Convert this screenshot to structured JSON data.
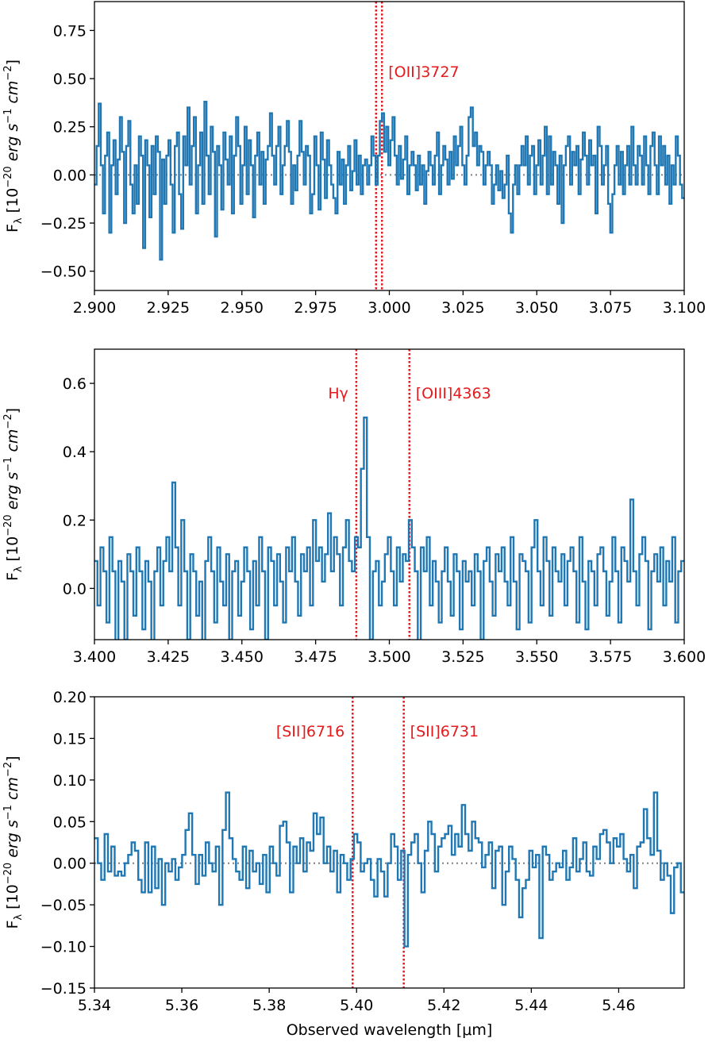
{
  "chart_data": [
    {
      "type": "line",
      "drawstyle": "steps",
      "xlim": [
        2.9,
        3.1
      ],
      "ylim": [
        -0.6,
        0.9
      ],
      "xticks": [
        "2.900",
        "2.925",
        "2.950",
        "2.975",
        "3.000",
        "3.025",
        "3.050",
        "3.075",
        "3.100"
      ],
      "yticks": [
        "−0.50",
        "−0.25",
        "0.00",
        "0.25",
        "0.50",
        "0.75"
      ],
      "ylabel_parts": [
        "F",
        "λ",
        " [10",
        "−20",
        " erg s",
        "−1",
        " cm",
        "−2",
        "]"
      ],
      "xlabel": "",
      "zero_line": true,
      "lines": [
        {
          "x": 2.9955,
          "label": ""
        },
        {
          "x": 2.9975,
          "label": "[OII]3727"
        }
      ],
      "x_start": 2.9,
      "x_end": 3.1,
      "values": [
        -0.05,
        0.15,
        0.37,
        0.05,
        -0.2,
        0.1,
        0.22,
        -0.3,
        0.05,
        0.18,
        -0.1,
        0.08,
        0.3,
        0.12,
        -0.25,
        0.15,
        0.28,
        -0.05,
        -0.2,
        0.05,
        -0.15,
        0.2,
        0.1,
        -0.38,
        0.18,
        0.05,
        -0.22,
        0.15,
        -0.1,
        0.2,
        0.12,
        -0.44,
        0.08,
        -0.15,
        0.1,
        0.18,
        -0.05,
        -0.3,
        0.15,
        0.22,
        -0.1,
        -0.28,
        0.2,
        0.05,
        0.35,
        -0.05,
        0.15,
        0.3,
        -0.2,
        0.05,
        0.22,
        -0.15,
        0.38,
        0.1,
        -0.1,
        0.25,
        0.12,
        -0.32,
        0.15,
        0.05,
        -0.18,
        0.22,
        0.08,
        -0.05,
        0.2,
        -0.2,
        0.1,
        0.3,
        0.15,
        -0.15,
        0.05,
        0.25,
        -0.1,
        0.18,
        0.05,
        -0.22,
        0.1,
        0.22,
        -0.05,
        0.12,
        -0.15,
        0.08,
        0.15,
        0.32,
        0.1,
        -0.05,
        0.15,
        0.25,
        -0.1,
        0.05,
        0.15,
        0.28,
        0.12,
        -0.15,
        0.05,
        -0.08,
        0.1,
        0.28,
        0.12,
        -0.05,
        0.15,
        0.1,
        -0.2,
        -0.1,
        0.2,
        0.05,
        -0.18,
        0.22,
        0.08,
        -0.12,
        0.18,
        0.05,
        -0.05,
        -0.12,
        -0.2,
        0.12,
        -0.05,
        0.08,
        -0.15,
        0.05,
        0.15,
        -0.08,
        0.02,
        0.18,
        -0.05,
        0.1,
        -0.1,
        0.05,
        0.08,
        -0.05,
        0.05,
        0.2,
        0.1,
        -0.05,
        0.1,
        0.28,
        0.32,
        0.12,
        0.25,
        0.05,
        0.18,
        0.3,
        0.1,
        -0.05,
        0.15,
        -0.02,
        0.08,
        0.2,
        -0.1,
        0.05,
        0.12,
        0.05,
        -0.08,
        0.1,
        -0.05,
        0.05,
        -0.15,
        0.02,
        0.12,
        0.05,
        -0.05,
        0.1,
        0.22,
        -0.1,
        0.05,
        0.15,
        0.08,
        -0.05,
        0.12,
        -0.02,
        0.2,
        0.05,
        0.15,
        0.25,
        0.05,
        -0.05,
        0.1,
        0.3,
        0.35,
        0.15,
        0.22,
        0.05,
        0.15,
        0.12,
        -0.05,
        0.05,
        0.12,
        0.05,
        -0.15,
        -0.05,
        0.05,
        -0.08,
        0.02,
        -0.12,
        -0.05,
        0.1,
        -0.2,
        -0.3,
        -0.05,
        0.05,
        -0.1,
        0.05,
        0.15,
        0.05,
        0.2,
        -0.05,
        0.1,
        0.15,
        -0.1,
        0.05,
        0.18,
        -0.05,
        0.1,
        0.25,
        -0.1,
        0.2,
        -0.05,
        0.12,
        0.05,
        -0.15,
        0.1,
        -0.25,
        0.05,
        0.15,
        0.2,
        -0.05,
        0.12,
        0.05,
        0.15,
        -0.1,
        0.08,
        0.22,
        0.1,
        -0.05,
        0.18,
        0.05,
        0.1,
        -0.2,
        0.25,
        0.15,
        -0.05,
        0.05,
        0.15,
        -0.15,
        -0.3,
        -0.1,
        0.05,
        0.15,
        -0.05,
        0.12,
        -0.1,
        0.05,
        0.15,
        -0.05,
        0.25,
        0.05,
        -0.05,
        0.15,
        0.1,
        -0.05,
        0.2,
        0.05,
        -0.1,
        0.15,
        0.22,
        0.05,
        -0.1,
        0.2,
        0.05,
        0.15,
        -0.05,
        0.1,
        -0.15,
        0.05,
        -0.05,
        0.2,
        0.1,
        -0.05,
        -0.12
      ]
    },
    {
      "type": "line",
      "drawstyle": "steps",
      "xlim": [
        3.4,
        3.6
      ],
      "ylim": [
        -0.15,
        0.7
      ],
      "xticks": [
        "3.400",
        "3.425",
        "3.450",
        "3.475",
        "3.500",
        "3.525",
        "3.550",
        "3.575",
        "3.600"
      ],
      "yticks": [
        "0.0",
        "0.2",
        "0.4",
        "0.6"
      ],
      "ylabel_parts": [
        "F",
        "λ",
        " [10",
        "−20",
        " erg s",
        "−1",
        " cm",
        "−2",
        "]"
      ],
      "xlabel": "",
      "zero_line": false,
      "lines": [
        {
          "x": 3.4888,
          "label": "Hγ",
          "side": "left"
        },
        {
          "x": 3.5068,
          "label": "[OIII]4363",
          "side": "right"
        }
      ],
      "x_start": 3.4,
      "x_end": 3.6,
      "values": [
        0.08,
        -0.05,
        0.12,
        0.05,
        -0.1,
        0.15,
        0.05,
        -0.2,
        0.08,
        0.02,
        -0.15,
        0.1,
        0.05,
        -0.08,
        0.12,
        0.05,
        -0.12,
        0.08,
        0.02,
        -0.25,
        0.05,
        0.12,
        -0.05,
        0.08,
        0.15,
        0.05,
        0.31,
        0.12,
        -0.05,
        0.2,
        0.05,
        -0.15,
        0.1,
        0.05,
        -0.08,
        0.02,
        -0.2,
        0.08,
        0.15,
        0.05,
        -0.1,
        0.12,
        0.02,
        -0.05,
        0.1,
        -0.15,
        0.05,
        0.08,
        -0.08,
        0.02,
        0.12,
        0.05,
        -0.12,
        0.08,
        -0.05,
        0.15,
        0.05,
        -0.15,
        0.12,
        0.08,
        -0.05,
        0.1,
        0.02,
        -0.1,
        0.12,
        0.05,
        0.15,
        0.02,
        -0.08,
        0.1,
        0.05,
        0.12,
        -0.05,
        0.2,
        0.08,
        0.12,
        0.02,
        0.1,
        0.22,
        0.05,
        0.15,
        0.1,
        -0.05,
        0.12,
        0.2,
        0.08,
        0.05,
        0.15,
        0.12,
        0.35,
        0.5,
        0.15,
        -0.15,
        0.05,
        0.08,
        -0.05,
        0.02,
        0.1,
        0.15,
        0.05,
        -0.05,
        0.12,
        0.02,
        0.1,
        0.08,
        0.2,
        0.12,
        0.05,
        -0.2,
        0.12,
        0.05,
        0.15,
        -0.05,
        0.08,
        0.02,
        -0.1,
        0.05,
        0.12,
        0.02,
        -0.08,
        0.1,
        0.05,
        -0.12,
        0.08,
        0.02,
        0.05,
        -0.05,
        0.1,
        0.05,
        -0.15,
        0.08,
        0.12,
        0.02,
        -0.08,
        0.1,
        0.05,
        0.12,
        0.02,
        -0.05,
        0.15,
        0.02,
        -0.12,
        0.1,
        0.08,
        0.05,
        -0.1,
        0.12,
        0.2,
        0.05,
        -0.05,
        0.15,
        0.08,
        -0.08,
        0.12,
        0.05,
        0.02,
        0.1,
        -0.05,
        0.08,
        0.12,
        0.05,
        -0.1,
        0.15,
        0.02,
        -0.12,
        0.08,
        0.05,
        -0.05,
        0.1,
        0.12,
        0.05,
        -0.08,
        0.02,
        0.15,
        0.05,
        -0.1,
        0.12,
        0.08,
        0.02,
        0.26,
        0.05,
        -0.05,
        0.1,
        0.15,
        0.08,
        -0.12,
        0.05,
        0.1,
        0.02,
        0.12,
        -0.05,
        0.08,
        0.02,
        0.15,
        -0.1,
        0.05,
        0.08
      ]
    },
    {
      "type": "line",
      "drawstyle": "steps",
      "xlim": [
        5.34,
        5.475
      ],
      "ylim": [
        -0.15,
        0.2
      ],
      "xticks": [
        "5.34",
        "5.36",
        "5.38",
        "5.40",
        "5.42",
        "5.44",
        "5.46"
      ],
      "yticks": [
        "−0.15",
        "−0.10",
        "−0.05",
        "0.00",
        "0.05",
        "0.10",
        "0.15",
        "0.20"
      ],
      "ylabel_parts": [
        "F",
        "λ",
        " [10",
        "−20",
        " erg s",
        "−1",
        " cm",
        "−2",
        "]"
      ],
      "xlabel": "Observed wavelength [μm]",
      "zero_line": true,
      "lines": [
        {
          "x": 5.3991,
          "label": "[SII]6716",
          "side": "left"
        },
        {
          "x": 5.4108,
          "label": "[SII]6731",
          "side": "right"
        }
      ],
      "x_start": 5.34,
      "x_end": 5.475,
      "values": [
        0.03,
        0.0,
        -0.02,
        0.035,
        -0.01,
        0.02,
        -0.015,
        -0.01,
        -0.015,
        0.0,
        0.01,
        0.025,
        0.015,
        -0.02,
        -0.035,
        0.025,
        -0.035,
        0.02,
        -0.03,
        0.005,
        -0.05,
        0.0,
        -0.01,
        0.005,
        -0.02,
        -0.005,
        0.01,
        0.04,
        0.06,
        0.01,
        -0.025,
        0.01,
        -0.015,
        0.025,
        0.0,
        -0.01,
        0.02,
        -0.05,
        0.04,
        0.085,
        0.03,
        0.005,
        -0.01,
        -0.02,
        0.02,
        -0.03,
        0.015,
        -0.01,
        0.0,
        -0.025,
        0.01,
        -0.035,
        0.02,
        0.0,
        -0.015,
        0.045,
        0.05,
        0.025,
        -0.035,
        0.02,
        0.0,
        0.03,
        -0.01,
        0.025,
        0.015,
        0.06,
        0.035,
        0.055,
        0.0,
        0.02,
        -0.01,
        0.015,
        -0.035,
        0.01,
        0.0,
        -0.02,
        0.005,
        0.035,
        0.025,
        -0.01,
        0.0,
        0.005,
        -0.02,
        -0.04,
        0.005,
        -0.01,
        -0.04,
        0.0,
        0.035,
        0.02,
        -0.02,
        0.015,
        -0.1,
        0.01,
        0.025,
        0.035,
        0.0,
        -0.035,
        0.015,
        0.05,
        0.035,
        -0.01,
        0.02,
        0.03,
        0.035,
        0.045,
        0.01,
        0.035,
        0.02,
        0.07,
        0.035,
        0.015,
        0.05,
        0.03,
        0.025,
        -0.005,
        0.01,
        0.025,
        -0.03,
        0.015,
        0.02,
        -0.05,
        -0.01,
        0.02,
        0.005,
        -0.02,
        -0.065,
        -0.03,
        -0.02,
        0.015,
        -0.005,
        0.01,
        -0.09,
        0.02,
        0.01,
        -0.02,
        -0.01,
        0.0,
        -0.005,
        0.015,
        -0.02,
        -0.005,
        0.03,
        -0.01,
        0.005,
        0.025,
        -0.01,
        -0.015,
        0.02,
        0.005,
        0.035,
        0.04,
        0.025,
        0.0,
        0.03,
        0.02,
        0.035,
        0.005,
        -0.01,
        0.01,
        -0.03,
        0.02,
        0.025,
        0.065,
        0.03,
        0.01,
        0.085,
        0.015,
        -0.02,
        0.0,
        -0.015,
        -0.06,
        -0.005,
        0.0,
        -0.035
      ]
    }
  ],
  "colors": {
    "series": "#1f77b4",
    "line_marker": "#e41a1c",
    "zero_line": "#808080"
  }
}
